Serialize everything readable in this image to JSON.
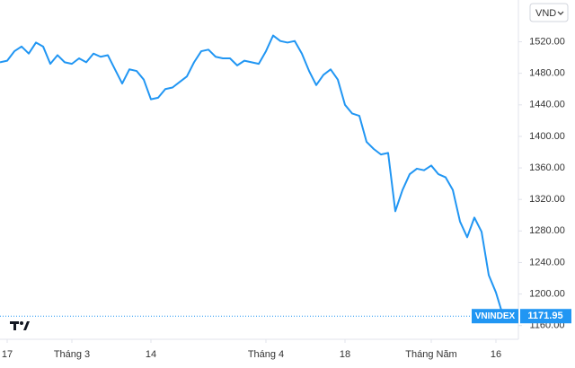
{
  "currency_selector": "VND",
  "chart_data": {
    "type": "line",
    "x": [
      0,
      1,
      2,
      3,
      4,
      5,
      6,
      7,
      8,
      9,
      10,
      11,
      12,
      13,
      14,
      15,
      16,
      17,
      18,
      19,
      20,
      21,
      22,
      23,
      24,
      25,
      26,
      27,
      28,
      29,
      30,
      31,
      32,
      33,
      34,
      35,
      36,
      37,
      38,
      39,
      40,
      41,
      42,
      43,
      44,
      45,
      46,
      47,
      48,
      49,
      50,
      51,
      52,
      53,
      54,
      55,
      56,
      57,
      58,
      59,
      60,
      61,
      62,
      63,
      64,
      65,
      66,
      67,
      68,
      69,
      70
    ],
    "series": [
      {
        "name": "VNINDEX",
        "color": "#2196f3",
        "values": [
          1494,
          1496,
          1508,
          1514,
          1505,
          1519,
          1514,
          1492,
          1503,
          1494,
          1492,
          1499,
          1494,
          1505,
          1501,
          1503,
          1485,
          1467,
          1485,
          1483,
          1472,
          1447,
          1449,
          1460,
          1462,
          1469,
          1476,
          1494,
          1508,
          1510,
          1501,
          1499,
          1499,
          1490,
          1496,
          1494,
          1492,
          1508,
          1528,
          1521,
          1519,
          1521,
          1505,
          1483,
          1465,
          1478,
          1485,
          1472,
          1440,
          1429,
          1426,
          1393,
          1384,
          1377,
          1379,
          1305,
          1332,
          1352,
          1359,
          1357,
          1363,
          1352,
          1348,
          1332,
          1292,
          1272,
          1297,
          1279,
          1224,
          1202,
          1171.95
        ]
      }
    ],
    "xlim": [
      0,
      70
    ],
    "xticks": [
      {
        "value": 1,
        "label": "17"
      },
      {
        "value": 10,
        "label": "Tháng 3"
      },
      {
        "value": 21,
        "label": "14"
      },
      {
        "value": 37,
        "label": "Tháng 4"
      },
      {
        "value": 48,
        "label": "18"
      },
      {
        "value": 60,
        "label": "Tháng Năm"
      },
      {
        "value": 69,
        "label": "16"
      }
    ],
    "ylim": [
      1146,
      1573
    ],
    "yticks": [
      {
        "value": 1160,
        "label": "1160.00"
      },
      {
        "value": 1200,
        "label": "1200.00"
      },
      {
        "value": 1240,
        "label": "1240.00"
      },
      {
        "value": 1280,
        "label": "1280.00"
      },
      {
        "value": 1320,
        "label": "1320.00"
      },
      {
        "value": 1360,
        "label": "1360.00"
      },
      {
        "value": 1400,
        "label": "1400.00"
      },
      {
        "value": 1440,
        "label": "1440.00"
      },
      {
        "value": 1480,
        "label": "1480.00"
      },
      {
        "value": 1520,
        "label": "1520.00"
      }
    ],
    "grid": false
  }
}
